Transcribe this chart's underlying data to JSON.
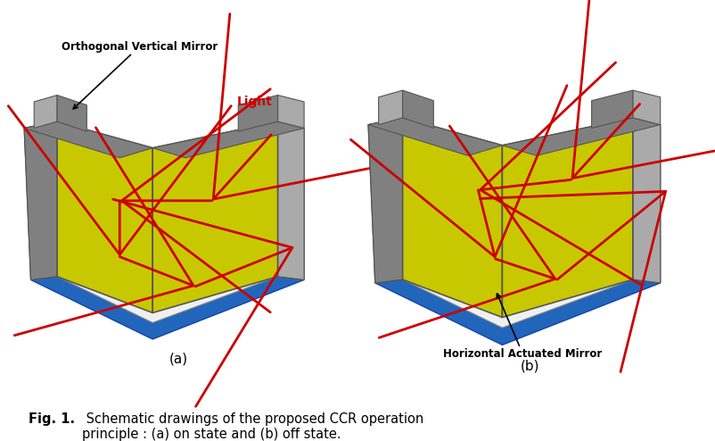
{
  "fig_caption_bold": "Fig. 1.",
  "fig_caption_normal": " Schematic drawings of the proposed CCR operation\nprinciple : (a) on state and (b) off state.",
  "label_a": "(a)",
  "label_b": "(b)",
  "label_vert_mirror": "Orthogonal Vertical Mirror",
  "label_light": "Light",
  "label_horiz_mirror": "Horizontal Actuated Mirror",
  "colors": {
    "yellow_green": "#c8c800",
    "gray_dark": "#555555",
    "gray_mid": "#808080",
    "gray_light": "#aaaaaa",
    "blue_base": "#2266bb",
    "white_frame": "#e8e8e8",
    "red_arrow": "#cc0000",
    "black": "#000000",
    "off_mirror_face": "#ccccbb",
    "off_mirror_edge": "#999988"
  },
  "background": "#ffffff"
}
